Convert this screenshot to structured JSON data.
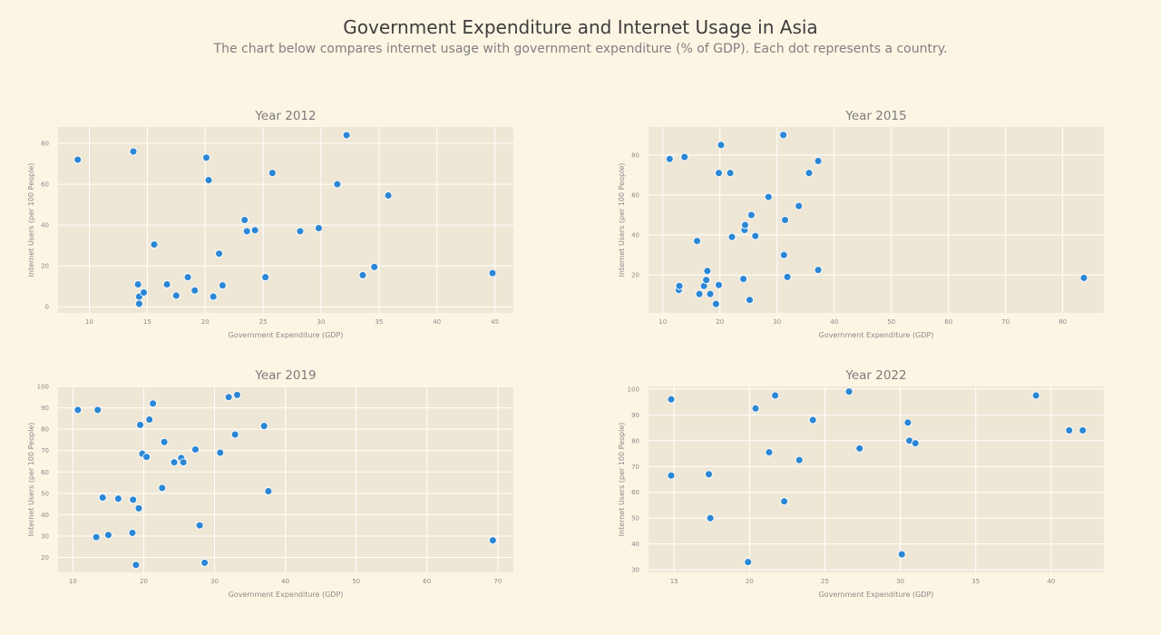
{
  "title": "Government Expenditure and Internet Usage in Asia",
  "subtitle": "The chart below compares internet usage with government expenditure (% of GDP). Each dot represents a country.",
  "colors": {
    "background": "#fdf5e4",
    "plot_bg": "#efe7d5",
    "grid": "#ffffff",
    "marker": "#2b87d6"
  },
  "chart_data": [
    {
      "type": "scatter",
      "title": "Year 2012",
      "xlabel": "Government Expenditure (GDP)",
      "ylabel": "Internet Users (per 100 People)",
      "xlim": [
        7.3,
        46.6
      ],
      "ylim": [
        -3,
        88
      ],
      "xticks": [
        10,
        15,
        20,
        25,
        30,
        35,
        40,
        45
      ],
      "yticks": [
        0,
        20,
        40,
        60,
        80
      ],
      "grid": true,
      "points": [
        [
          9.0,
          72.0
        ],
        [
          13.8,
          76.0
        ],
        [
          14.2,
          11.0
        ],
        [
          14.3,
          5.0
        ],
        [
          14.3,
          1.5
        ],
        [
          14.7,
          7.0
        ],
        [
          15.6,
          30.5
        ],
        [
          16.7,
          11.0
        ],
        [
          17.5,
          5.5
        ],
        [
          18.5,
          14.5
        ],
        [
          19.1,
          8.0
        ],
        [
          20.1,
          73.0
        ],
        [
          20.3,
          62.0
        ],
        [
          20.7,
          5.0
        ],
        [
          21.2,
          26.0
        ],
        [
          21.5,
          10.5
        ],
        [
          23.4,
          42.5
        ],
        [
          23.6,
          37.0
        ],
        [
          24.3,
          37.5
        ],
        [
          25.2,
          14.5
        ],
        [
          25.8,
          65.5
        ],
        [
          28.2,
          37.0
        ],
        [
          29.8,
          38.5
        ],
        [
          31.4,
          60.0
        ],
        [
          32.2,
          84.0
        ],
        [
          33.6,
          15.5
        ],
        [
          34.6,
          19.5
        ],
        [
          35.8,
          54.5
        ],
        [
          44.8,
          16.5
        ]
      ]
    },
    {
      "type": "scatter",
      "title": "Year 2015",
      "xlabel": "Government Expenditure (GDP)",
      "ylabel": "Internet Users (per 100 People)",
      "xlim": [
        7.5,
        87.2
      ],
      "ylim": [
        1,
        94
      ],
      "xticks": [
        10,
        20,
        30,
        40,
        50,
        60,
        70,
        80
      ],
      "yticks": [
        20,
        40,
        60,
        80
      ],
      "grid": true,
      "points": [
        [
          11.2,
          78.0
        ],
        [
          12.8,
          12.5
        ],
        [
          12.9,
          14.5
        ],
        [
          13.8,
          79.0
        ],
        [
          16.0,
          37.0
        ],
        [
          16.4,
          10.5
        ],
        [
          17.2,
          14.5
        ],
        [
          17.6,
          17.5
        ],
        [
          17.8,
          22.0
        ],
        [
          18.3,
          10.5
        ],
        [
          19.3,
          5.5
        ],
        [
          19.8,
          71.0
        ],
        [
          19.8,
          15.0
        ],
        [
          20.2,
          85.0
        ],
        [
          21.8,
          71.0
        ],
        [
          22.1,
          39.0
        ],
        [
          24.1,
          18.0
        ],
        [
          24.3,
          42.5
        ],
        [
          24.4,
          45.0
        ],
        [
          25.2,
          7.5
        ],
        [
          25.5,
          50.0
        ],
        [
          26.2,
          39.5
        ],
        [
          28.5,
          59.0
        ],
        [
          31.1,
          90.0
        ],
        [
          31.2,
          30.0
        ],
        [
          31.4,
          47.5
        ],
        [
          31.8,
          19.0
        ],
        [
          33.8,
          54.5
        ],
        [
          35.6,
          71.0
        ],
        [
          37.2,
          77.0
        ],
        [
          37.2,
          22.5
        ],
        [
          83.7,
          18.5
        ]
      ]
    },
    {
      "type": "scatter",
      "title": "Year 2019",
      "xlabel": "Government Expenditure (GDP)",
      "ylabel": "Internet Users (per 100 People)",
      "xlim": [
        7.9,
        72.2
      ],
      "ylim": [
        13,
        100
      ],
      "xticks": [
        10,
        20,
        30,
        40,
        50,
        60,
        70
      ],
      "yticks": [
        20,
        30,
        40,
        50,
        60,
        70,
        80,
        90,
        100
      ],
      "grid": true,
      "points": [
        [
          10.7,
          89.0
        ],
        [
          13.3,
          29.5
        ],
        [
          13.5,
          89.0
        ],
        [
          14.2,
          48.0
        ],
        [
          15.0,
          30.5
        ],
        [
          16.4,
          47.5
        ],
        [
          18.4,
          31.5
        ],
        [
          18.5,
          47.0
        ],
        [
          18.9,
          16.5
        ],
        [
          19.3,
          43.0
        ],
        [
          19.5,
          82.0
        ],
        [
          19.8,
          68.5
        ],
        [
          20.4,
          67.0
        ],
        [
          20.8,
          84.5
        ],
        [
          21.3,
          92.0
        ],
        [
          22.6,
          52.5
        ],
        [
          22.9,
          74.0
        ],
        [
          24.3,
          64.5
        ],
        [
          25.3,
          66.5
        ],
        [
          25.6,
          64.5
        ],
        [
          27.3,
          70.5
        ],
        [
          27.9,
          35.0
        ],
        [
          28.6,
          17.5
        ],
        [
          30.8,
          69.0
        ],
        [
          32.0,
          95.0
        ],
        [
          32.9,
          77.5
        ],
        [
          33.2,
          96.0
        ],
        [
          37.0,
          81.5
        ],
        [
          37.6,
          51.0
        ],
        [
          69.3,
          28.0
        ]
      ]
    },
    {
      "type": "scatter",
      "title": "Year 2022",
      "xlabel": "Government Expenditure (GDP)",
      "ylabel": "Internet Users (per 100 People)",
      "xlim": [
        13.3,
        43.5
      ],
      "ylim": [
        29,
        101
      ],
      "xticks": [
        15,
        20,
        25,
        30,
        35,
        40
      ],
      "yticks": [
        30,
        40,
        50,
        60,
        70,
        80,
        90,
        100
      ],
      "grid": true,
      "points": [
        [
          14.8,
          96.0
        ],
        [
          14.8,
          66.5
        ],
        [
          17.3,
          67.0
        ],
        [
          17.4,
          50.0
        ],
        [
          19.9,
          33.0
        ],
        [
          20.4,
          92.5
        ],
        [
          21.3,
          75.5
        ],
        [
          21.7,
          97.5
        ],
        [
          22.3,
          56.5
        ],
        [
          23.3,
          72.5
        ],
        [
          24.2,
          88.0
        ],
        [
          26.6,
          99.0
        ],
        [
          27.3,
          77.0
        ],
        [
          30.1,
          36.0
        ],
        [
          30.5,
          87.0
        ],
        [
          30.6,
          80.0
        ],
        [
          31.0,
          79.0
        ],
        [
          39.0,
          97.5
        ],
        [
          41.2,
          84.0
        ],
        [
          42.1,
          84.0
        ]
      ]
    }
  ]
}
